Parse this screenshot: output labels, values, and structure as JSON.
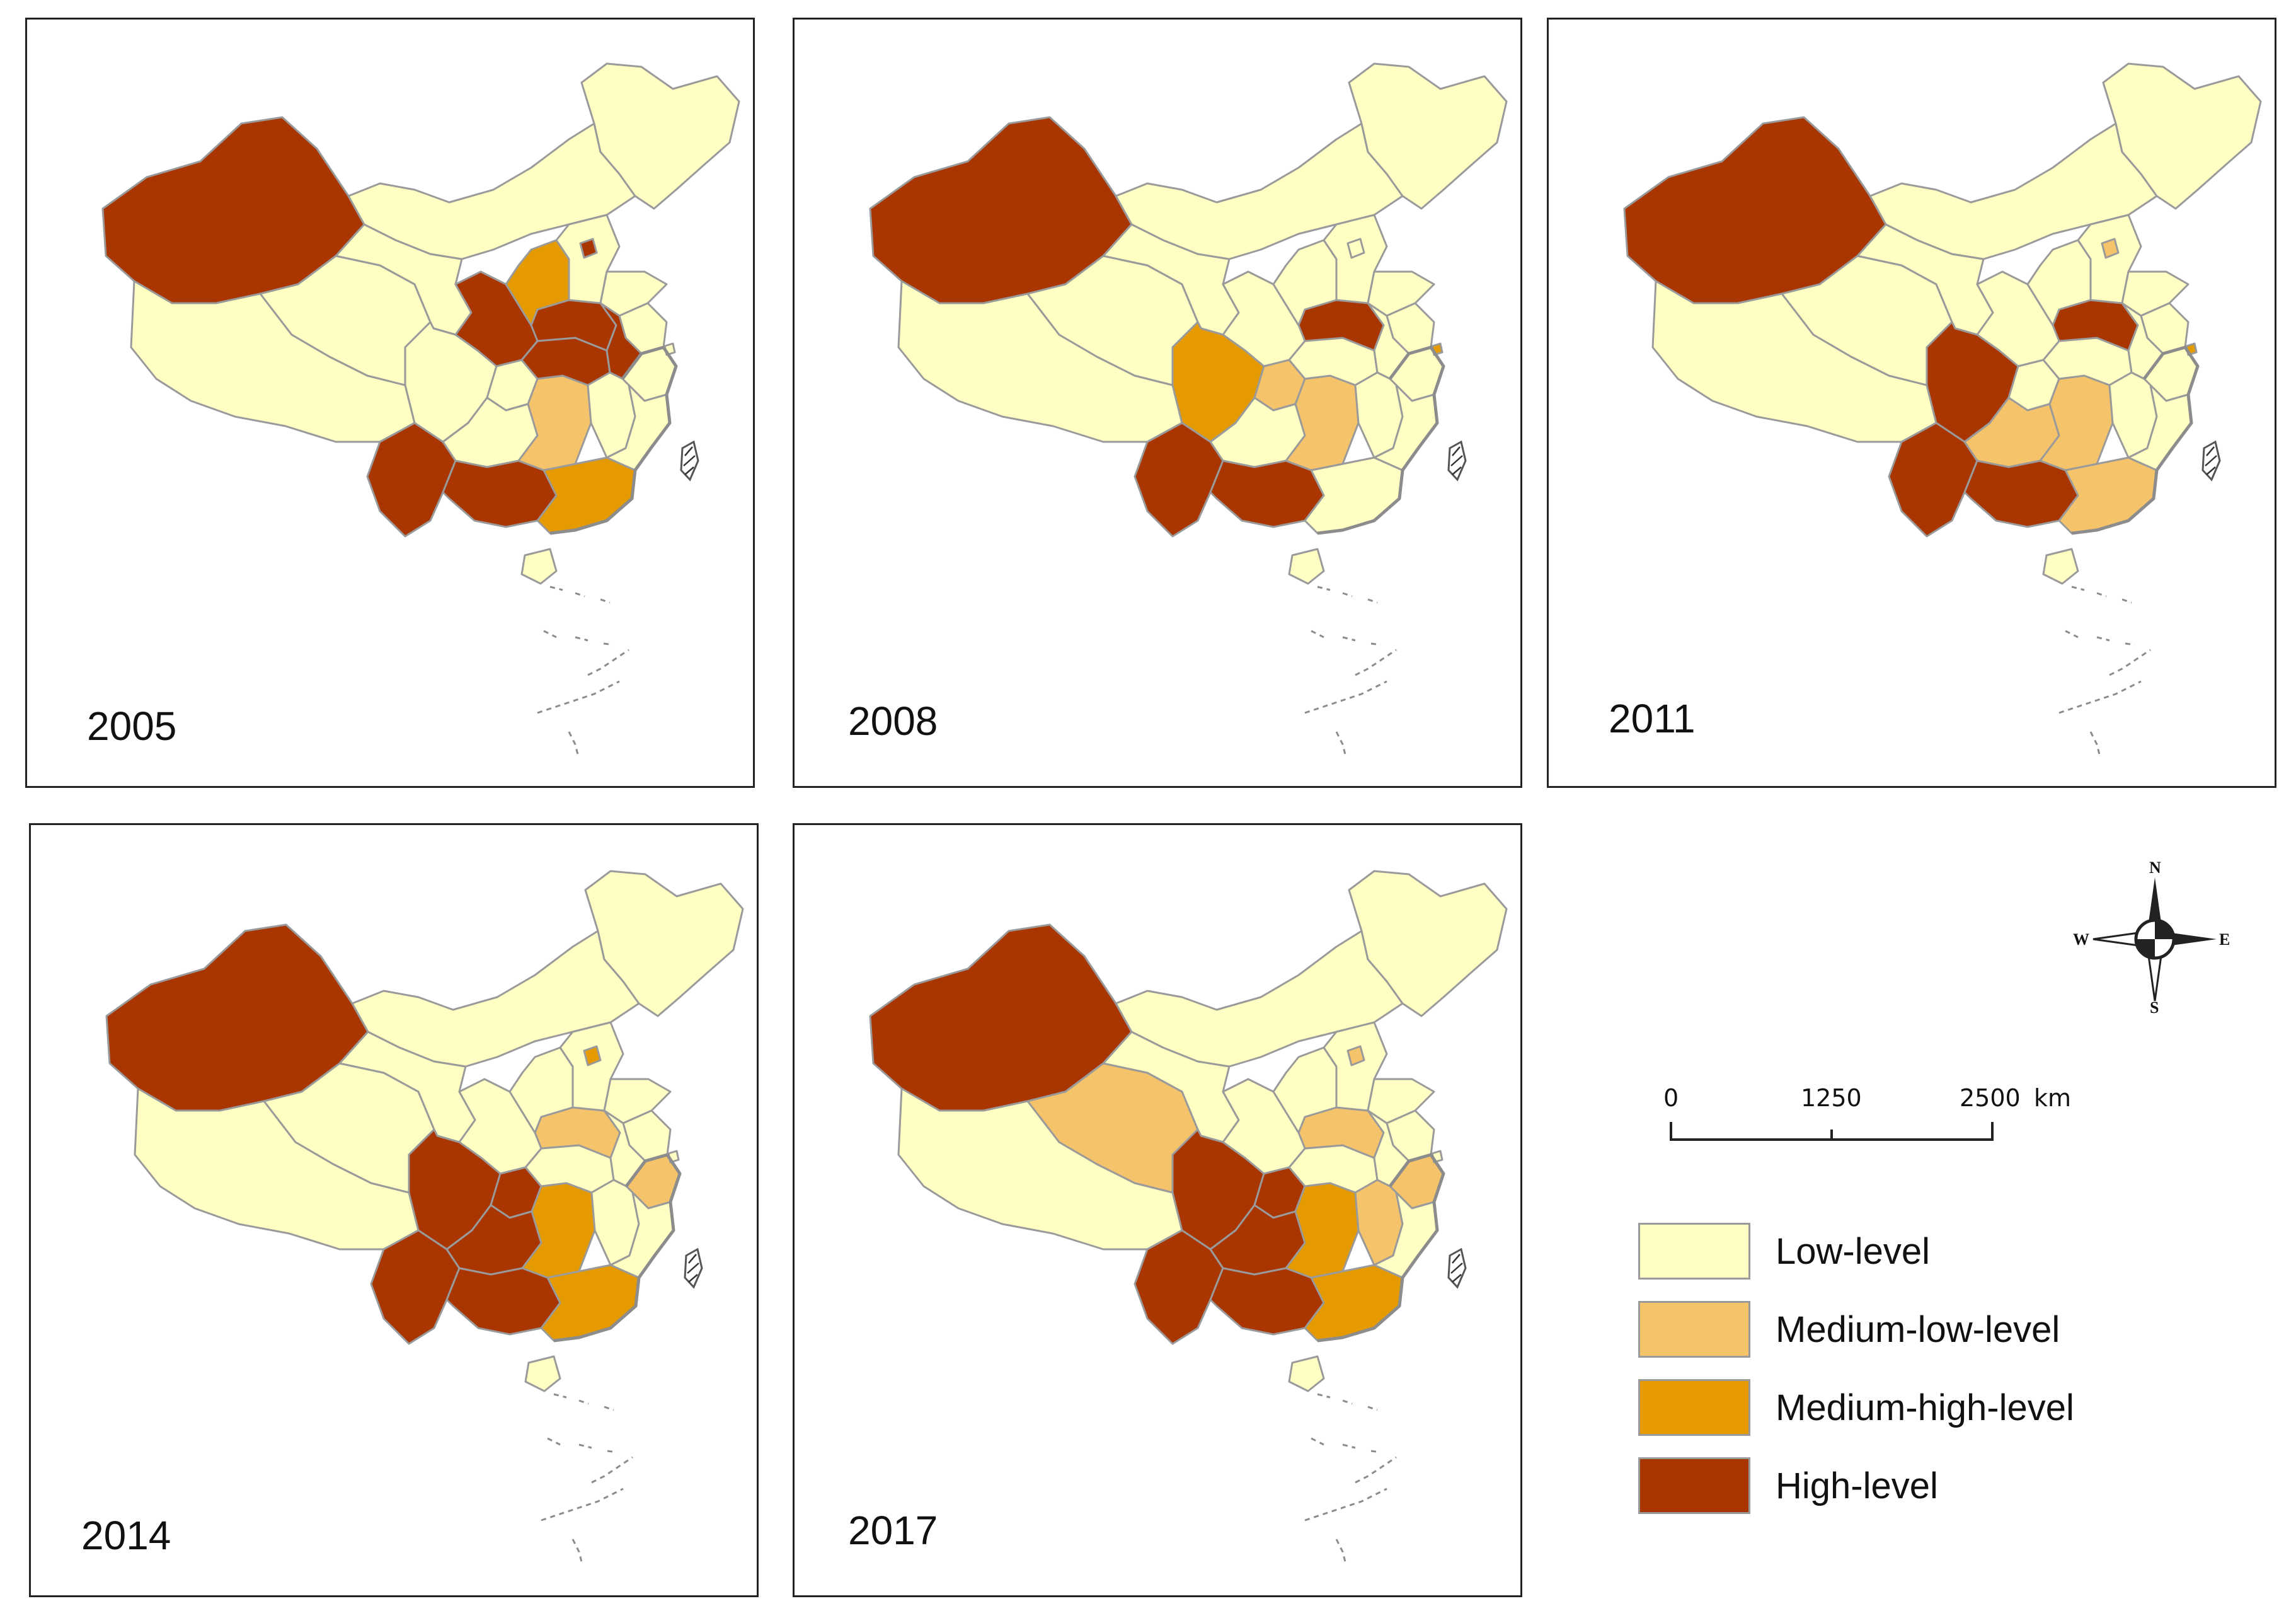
{
  "colors": {
    "low": "#FFFFC4",
    "medium_low": "#F5C36A",
    "medium_high": "#E59B00",
    "high": "#A93500",
    "border": "#9A9A9A"
  },
  "panels": [
    {
      "year": "2005",
      "regions": {
        "xinjiang": "high",
        "tibet": "low",
        "qinghai": "low",
        "gansu": "low",
        "inner_mongolia": "low",
        "northeast": "low",
        "sichuan": "low",
        "chongqing": "low",
        "yunnan": "high",
        "guizhou": "low",
        "guangxi": "high",
        "guangdong": "medium_high",
        "hunan": "medium_low",
        "hubei": "high",
        "henan": "high",
        "shaanxi": "high",
        "shanxi": "medium_high",
        "beijing": "high",
        "anhui": "high",
        "jiangxi": "low",
        "fujian": "low",
        "zhejiang": "low",
        "jiangsu": "low",
        "shandong": "low",
        "hebei": "low",
        "hainan": "low"
      }
    },
    {
      "year": "2008",
      "regions": {
        "xinjiang": "high",
        "tibet": "low",
        "qinghai": "low",
        "gansu": "low",
        "inner_mongolia": "low",
        "northeast": "low",
        "sichuan": "medium_high",
        "chongqing": "medium_low",
        "yunnan": "high",
        "guizhou": "low",
        "guangxi": "high",
        "guangdong": "low",
        "hunan": "medium_low",
        "hubei": "low",
        "henan": "high",
        "shaanxi": "low",
        "shanxi": "low",
        "beijing": "low",
        "anhui": "low",
        "jiangxi": "low",
        "fujian": "low",
        "zhejiang": "low",
        "jiangsu": "low",
        "shandong": "low",
        "hebei": "low",
        "hainan": "low",
        "shanghai": "medium_high"
      }
    },
    {
      "year": "2011",
      "regions": {
        "xinjiang": "high",
        "tibet": "low",
        "qinghai": "low",
        "gansu": "low",
        "inner_mongolia": "low",
        "northeast": "low",
        "sichuan": "high",
        "chongqing": "low",
        "yunnan": "high",
        "guizhou": "medium_low",
        "guangxi": "high",
        "guangdong": "medium_low",
        "hunan": "medium_low",
        "hubei": "low",
        "henan": "high",
        "shaanxi": "low",
        "shanxi": "low",
        "beijing": "medium_low",
        "anhui": "low",
        "jiangxi": "low",
        "fujian": "low",
        "zhejiang": "low",
        "jiangsu": "low",
        "shandong": "low",
        "hebei": "low",
        "hainan": "low",
        "shanghai": "medium_high"
      }
    },
    {
      "year": "2014",
      "regions": {
        "xinjiang": "high",
        "tibet": "low",
        "qinghai": "low",
        "gansu": "low",
        "inner_mongolia": "low",
        "northeast": "low",
        "sichuan": "high",
        "chongqing": "high",
        "yunnan": "high",
        "guizhou": "high",
        "guangxi": "high",
        "guangdong": "medium_high",
        "hunan": "medium_high",
        "hubei": "low",
        "henan": "medium_low",
        "shaanxi": "low",
        "shanxi": "low",
        "beijing": "medium_high",
        "anhui": "low",
        "jiangxi": "low",
        "fujian": "low",
        "zhejiang": "medium_low",
        "jiangsu": "low",
        "shandong": "low",
        "hebei": "low",
        "hainan": "low"
      }
    },
    {
      "year": "2017",
      "regions": {
        "xinjiang": "high",
        "tibet": "low",
        "qinghai": "medium_low",
        "gansu": "low",
        "inner_mongolia": "low",
        "northeast": "low",
        "sichuan": "high",
        "chongqing": "high",
        "yunnan": "high",
        "guizhou": "high",
        "guangxi": "high",
        "guangdong": "medium_high",
        "hunan": "medium_high",
        "hubei": "low",
        "henan": "medium_low",
        "shaanxi": "low",
        "shanxi": "low",
        "beijing": "medium_low",
        "anhui": "low",
        "jiangxi": "medium_low",
        "fujian": "low",
        "zhejiang": "medium_low",
        "jiangsu": "low",
        "shandong": "low",
        "hebei": "low",
        "hainan": "low"
      }
    }
  ],
  "legend": [
    {
      "key": "low",
      "label": "Low-level"
    },
    {
      "key": "medium_low",
      "label": "Medium-low-level"
    },
    {
      "key": "medium_high",
      "label": "Medium-high-level"
    },
    {
      "key": "high",
      "label": "High-level"
    }
  ],
  "scale_bar": {
    "ticks": [
      "0",
      "1250",
      "2500"
    ],
    "unit": "km"
  },
  "north_arrow": {
    "n": "N",
    "s": "S",
    "e": "E",
    "w": "W",
    "icon": "compass-rose-icon"
  }
}
